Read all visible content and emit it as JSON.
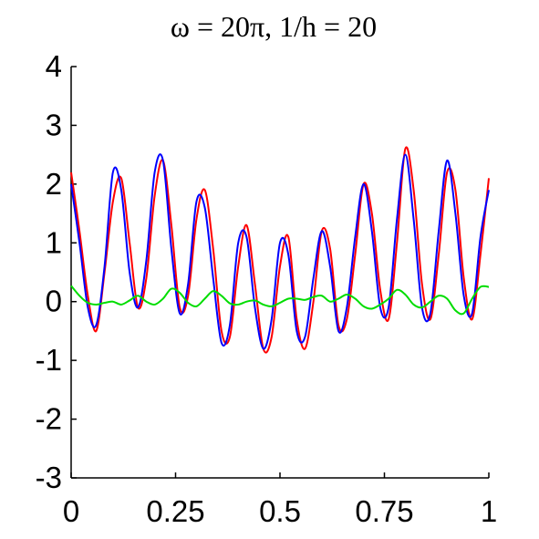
{
  "chart_data": {
    "type": "line",
    "title": "ω = 20π, 1/h = 20",
    "xlabel": "",
    "ylabel": "",
    "xlim": [
      0,
      1
    ],
    "ylim": [
      -3,
      4
    ],
    "xticks": [
      0,
      0.25,
      0.5,
      0.75,
      1
    ],
    "xtick_labels": [
      "0",
      "0.25",
      "0.5",
      "0.75",
      "1"
    ],
    "yticks": [
      -3,
      -2,
      -1,
      0,
      1,
      2,
      3,
      4
    ],
    "ytick_labels": [
      "-3",
      "-2",
      "-1",
      "0",
      "1",
      "2",
      "3",
      "4"
    ],
    "grid": false,
    "legend": "none",
    "x": [
      0,
      0.02,
      0.04,
      0.06,
      0.08,
      0.1,
      0.12,
      0.14,
      0.16,
      0.18,
      0.2,
      0.22,
      0.24,
      0.26,
      0.28,
      0.3,
      0.32,
      0.34,
      0.36,
      0.38,
      0.4,
      0.42,
      0.44,
      0.46,
      0.48,
      0.5,
      0.52,
      0.54,
      0.56,
      0.58,
      0.6,
      0.62,
      0.64,
      0.66,
      0.68,
      0.7,
      0.72,
      0.74,
      0.76,
      0.78,
      0.8,
      0.82,
      0.84,
      0.86,
      0.88,
      0.9,
      0.92,
      0.94,
      0.96,
      0.98,
      1.0
    ],
    "series": [
      {
        "color": "#ff0000",
        "values": [
          2.2,
          1.2,
          0.1,
          -0.5,
          0.5,
          1.7,
          2.1,
          1.0,
          -0.1,
          0.4,
          1.8,
          2.4,
          1.3,
          -0.1,
          0.1,
          1.4,
          1.9,
          0.9,
          -0.5,
          -0.6,
          0.6,
          1.3,
          0.3,
          -0.8,
          -0.6,
          0.6,
          1.1,
          -0.3,
          -0.8,
          0.0,
          1.2,
          0.9,
          -0.4,
          -0.3,
          0.8,
          2.0,
          1.5,
          0.2,
          -0.3,
          1.0,
          2.6,
          1.9,
          0.3,
          -0.3,
          0.8,
          2.2,
          1.9,
          0.4,
          -0.3,
          0.8,
          2.1
        ]
      },
      {
        "color": "#0000ff",
        "values": [
          2.0,
          1.0,
          -0.1,
          -0.4,
          0.6,
          2.2,
          1.9,
          0.5,
          -0.1,
          0.7,
          2.2,
          2.4,
          0.9,
          -0.2,
          0.3,
          1.7,
          1.6,
          0.4,
          -0.7,
          -0.4,
          1.0,
          1.1,
          -0.1,
          -0.8,
          -0.3,
          1.0,
          0.8,
          -0.5,
          -0.6,
          0.4,
          1.2,
          0.6,
          -0.5,
          -0.1,
          1.1,
          2.0,
          1.2,
          -0.1,
          -0.1,
          1.4,
          2.5,
          1.4,
          -0.1,
          -0.2,
          1.2,
          2.4,
          1.5,
          0.1,
          -0.2,
          1.1,
          1.9
        ]
      },
      {
        "color": "#00dd00",
        "values": [
          0.27,
          0.1,
          -0.02,
          -0.05,
          -0.02,
          0.0,
          -0.05,
          0.02,
          0.1,
          0.0,
          -0.05,
          0.05,
          0.22,
          0.15,
          -0.02,
          -0.08,
          0.05,
          0.18,
          0.1,
          -0.03,
          -0.05,
          0.0,
          0.02,
          -0.05,
          -0.08,
          -0.02,
          0.05,
          0.05,
          0.03,
          0.08,
          0.1,
          0.0,
          0.05,
          0.12,
          0.05,
          -0.08,
          -0.12,
          -0.05,
          0.05,
          0.2,
          0.12,
          -0.05,
          -0.1,
          0.0,
          0.1,
          0.05,
          -0.15,
          -0.2,
          0.05,
          0.25,
          0.25
        ]
      }
    ]
  }
}
